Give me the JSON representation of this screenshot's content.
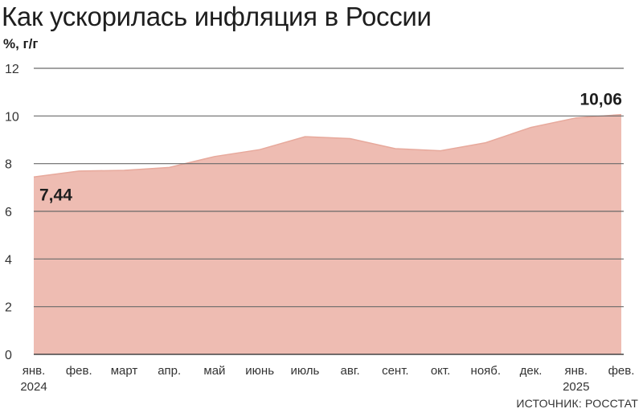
{
  "header": {
    "title": "Как ускорилась инфляция в России",
    "unit": "%, г/г"
  },
  "footer": {
    "source": "ИСТОЧНИК: РОССТАТ"
  },
  "colors": {
    "area_fill": "#eebcb2",
    "area_stroke": "#e7a99c",
    "grid": "#6a6a6a",
    "axis": "#444444"
  },
  "chart_data": {
    "type": "area",
    "title": "Как ускорилась инфляция в России",
    "ylabel": "%, г/г",
    "xlabel": "",
    "ylim": [
      0,
      12
    ],
    "yticks": [
      0,
      2,
      4,
      6,
      8,
      10,
      12
    ],
    "grid": true,
    "categories": [
      "янв.",
      "фев.",
      "март",
      "апр.",
      "май",
      "июнь",
      "июль",
      "авг.",
      "сент.",
      "окт.",
      "нояб.",
      "дек.",
      "янв.",
      "фев."
    ],
    "year_labels": [
      {
        "category_index": 0,
        "label": "2024"
      },
      {
        "category_index": 12,
        "label": "2025"
      }
    ],
    "values": [
      7.44,
      7.69,
      7.72,
      7.84,
      8.3,
      8.59,
      9.13,
      9.05,
      8.63,
      8.54,
      8.88,
      9.52,
      9.92,
      10.06
    ],
    "data_labels": [
      {
        "index": 0,
        "text": "7,44"
      },
      {
        "index": 13,
        "text": "10,06"
      }
    ]
  }
}
